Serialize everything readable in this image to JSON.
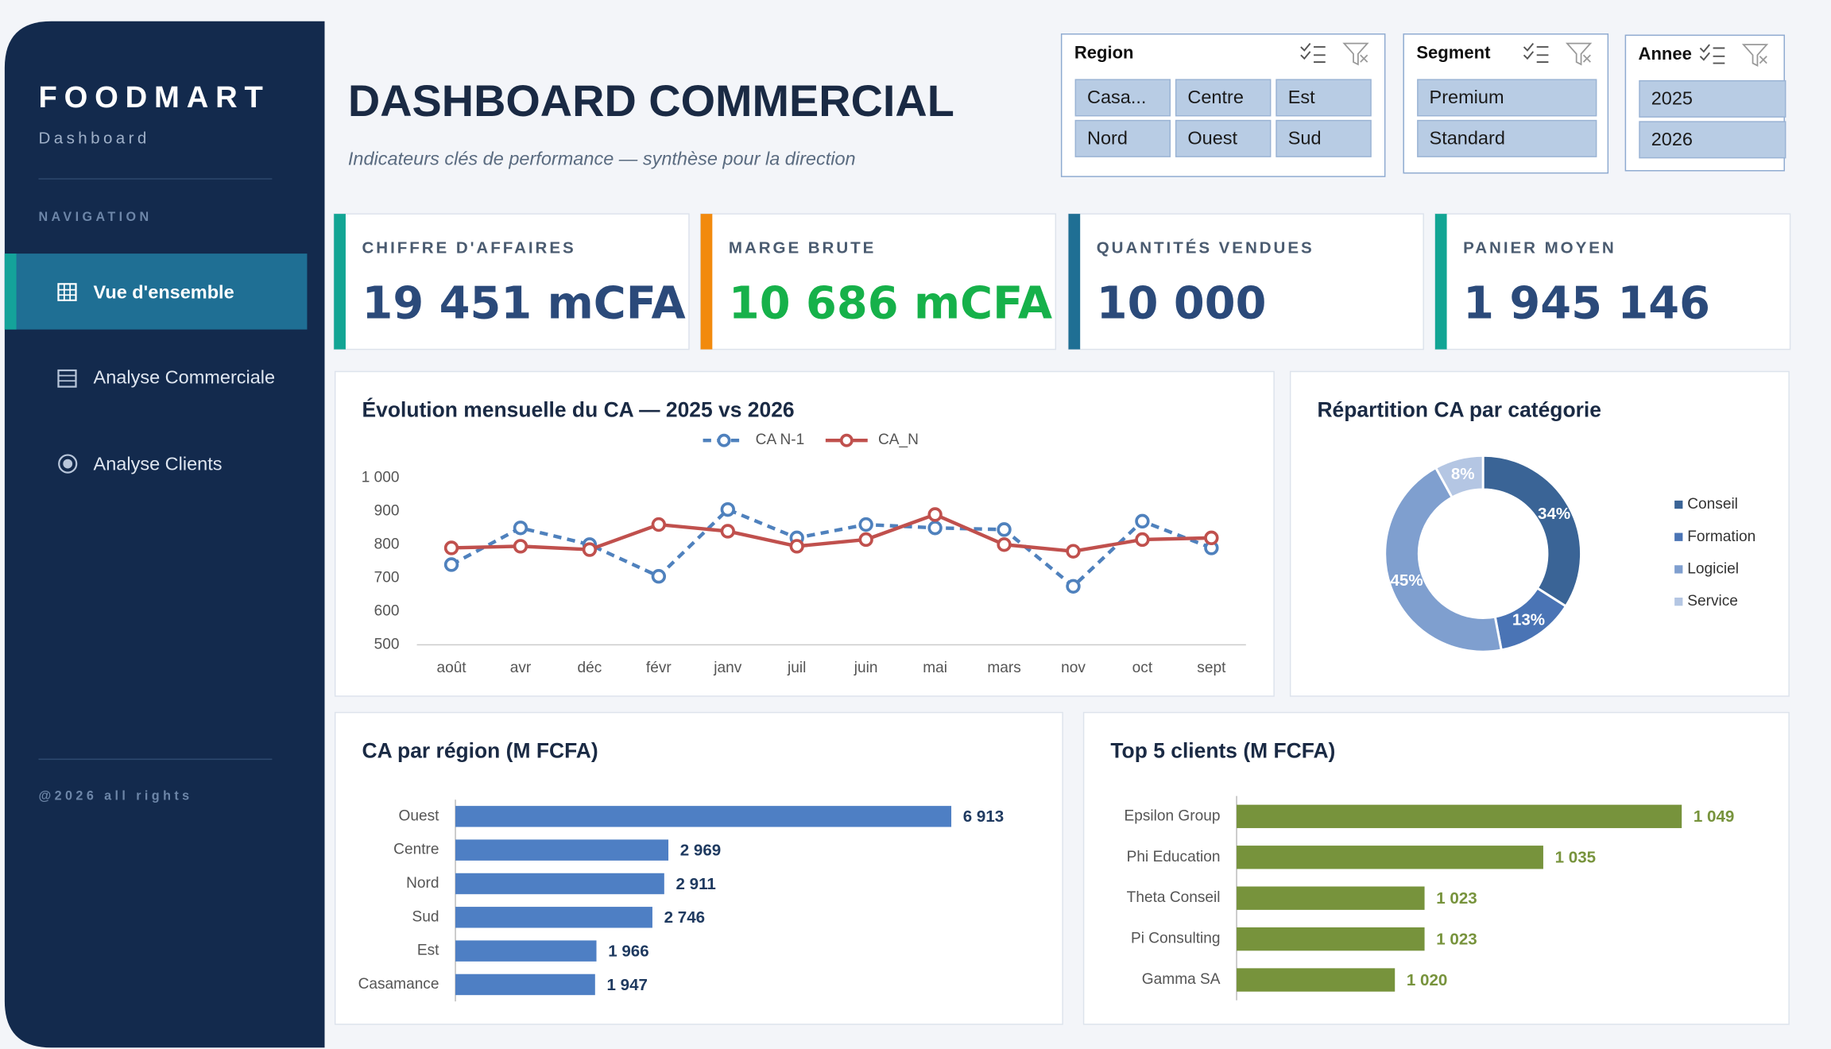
{
  "sidebar": {
    "brand": "FOODMART",
    "subtitle": "Dashboard",
    "nav_heading": "NAVIGATION",
    "nav_items": [
      "Vue d'ensemble",
      "Analyse Commerciale",
      "Analyse Clients"
    ],
    "footer": "@2026 all rights"
  },
  "header": {
    "title": "DASHBOARD COMMERCIAL",
    "subtitle": "Indicateurs clés de performance — synthèse pour la direction"
  },
  "slicers": [
    {
      "title": "Region",
      "items": [
        "Casa...",
        "Centre",
        "Est",
        "Nord",
        "Ouest",
        "Sud"
      ]
    },
    {
      "title": "Segment",
      "items": [
        "Premium",
        "Standard"
      ]
    },
    {
      "title": "Annee",
      "items": [
        "2025",
        "2026"
      ]
    }
  ],
  "kpis": [
    {
      "label": "CHIFFRE D'AFFAIRES",
      "value": "19 451 mCFA",
      "color": "#2b4a7a",
      "accent": "#12a594"
    },
    {
      "label": "MARGE BRUTE",
      "value": "10 686 mCFA",
      "color": "#16b14a",
      "accent": "#f28a0e"
    },
    {
      "label": "QUANTITÉS VENDUES",
      "value": "10 000",
      "color": "#2b4a7a",
      "accent": "#1f6f94"
    },
    {
      "label": "PANIER MOYEN",
      "value": "1 945 146",
      "color": "#2b4a7a",
      "accent": "#12a594"
    }
  ],
  "chart_data": [
    {
      "type": "line",
      "title": "Évolution mensuelle du CA — 2025 vs 2026",
      "categories": [
        "août",
        "avr",
        "déc",
        "févr",
        "janv",
        "juil",
        "juin",
        "mai",
        "mars",
        "nov",
        "oct",
        "sept"
      ],
      "series": [
        {
          "name": "CA N-1",
          "color": "#4f81bd",
          "style": "dashed",
          "values": [
            740,
            850,
            800,
            705,
            905,
            820,
            860,
            850,
            845,
            675,
            870,
            790
          ]
        },
        {
          "name": "CA_N",
          "color": "#c0504d",
          "style": "solid",
          "values": [
            790,
            795,
            785,
            860,
            840,
            795,
            815,
            890,
            800,
            780,
            815,
            820
          ]
        }
      ],
      "ylim": [
        500,
        1000
      ],
      "yticks": [
        500,
        600,
        700,
        800,
        900,
        {
          "value": 1000,
          "label": "1 000"
        }
      ],
      "grid": false,
      "legend": "top"
    },
    {
      "type": "donut",
      "title": "Répartition CA par catégorie",
      "categories": [
        "Conseil",
        "Formation",
        "Logiciel",
        "Service"
      ],
      "values": [
        34,
        13,
        45,
        8
      ],
      "value_labels": [
        "34%",
        "13%",
        "45%",
        "8%"
      ],
      "colors": [
        "#3a6496",
        "#4a74b5",
        "#7f9fcf",
        "#b4c6e3"
      ],
      "legend": "right"
    },
    {
      "type": "barh",
      "title": "CA par région (M FCFA)",
      "categories": [
        "Ouest",
        "Centre",
        "Nord",
        "Sud",
        "Est",
        "Casamance"
      ],
      "values": [
        6913,
        2969,
        2911,
        2746,
        1966,
        1947
      ],
      "value_labels": [
        "6 913",
        "2 969",
        "2 911",
        "2 746",
        "1 966",
        "1 947"
      ],
      "color": "#4e7fc4",
      "label_color": "#1f3a60",
      "xlim": [
        0,
        7000
      ]
    },
    {
      "type": "barh",
      "title": "Top 5 clients (M FCFA)",
      "categories": [
        "Epsilon Group",
        "Phi Education",
        "Theta Conseil",
        "Pi Consulting",
        "Gamma SA"
      ],
      "values": [
        1049,
        1035,
        1023,
        1023,
        1020
      ],
      "value_labels": [
        "1 049",
        "1 035",
        "1 023",
        "1 023",
        "1 020"
      ],
      "color": "#77933c",
      "label_color": "#77933c",
      "xlim": [
        1004,
        1055
      ]
    }
  ]
}
